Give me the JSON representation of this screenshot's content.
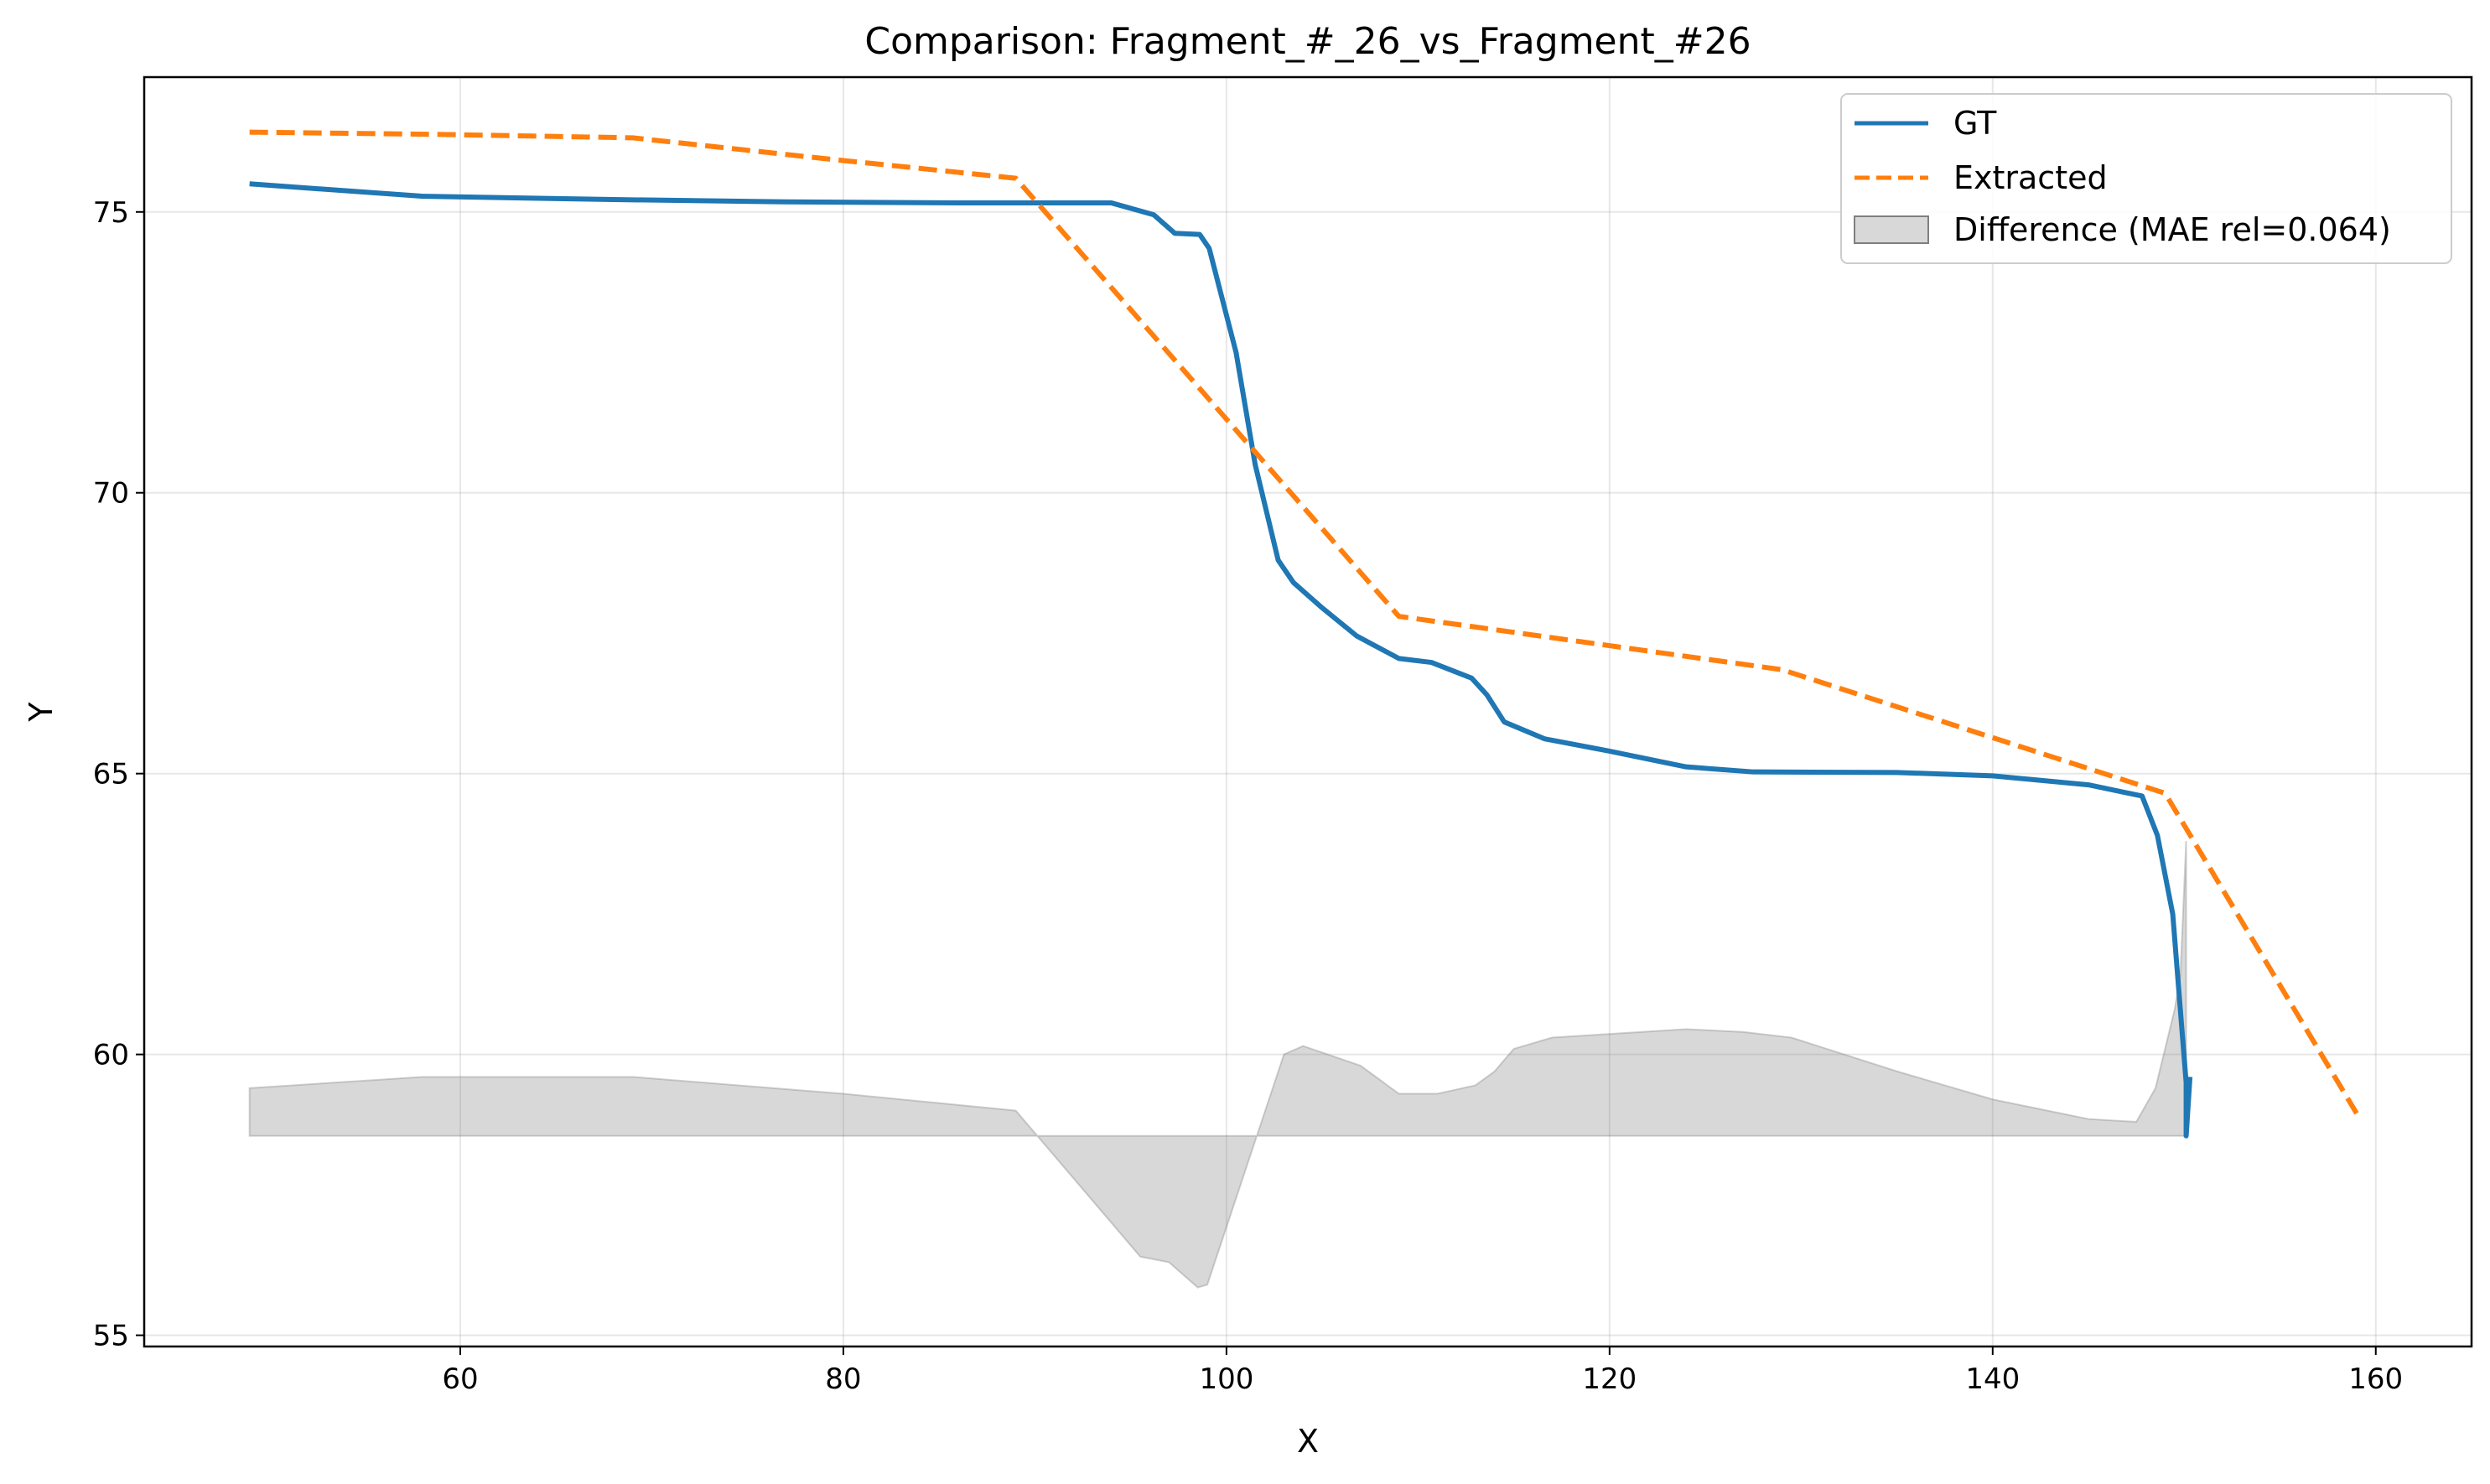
{
  "chart_data": {
    "type": "line",
    "title": "Comparison: Fragment_#_26_vs_Fragment_#26",
    "xlabel": "X",
    "ylabel": "Y",
    "xlim": [
      43.5,
      165
    ],
    "ylim": [
      54.8,
      77.4
    ],
    "xticks": [
      60,
      80,
      100,
      120,
      140,
      160
    ],
    "yticks": [
      55,
      60,
      65,
      70,
      75
    ],
    "grid": true,
    "legend_position": "top-right",
    "series": [
      {
        "name": "GT",
        "style": "solid",
        "color": "#1f77b4",
        "x": [
          49,
          58,
          68,
          77,
          86,
          94,
          96.2,
          97.3,
          98.6,
          99.1,
          100.5,
          101.5,
          102.7,
          103.5,
          105,
          106.8,
          109,
          110.7,
          112.8,
          113.6,
          114.5,
          116.6,
          120,
          124,
          127.5,
          135,
          140,
          145,
          147.8,
          148.6,
          149.4,
          150.1,
          150.1,
          150.3
        ],
        "y": [
          75.5,
          75.28,
          75.22,
          75.18,
          75.16,
          75.16,
          74.95,
          74.62,
          74.6,
          74.35,
          72.5,
          70.5,
          68.8,
          68.4,
          67.95,
          67.45,
          67.05,
          66.98,
          66.7,
          66.4,
          65.92,
          65.62,
          65.4,
          65.12,
          65.03,
          65.02,
          64.96,
          64.8,
          64.6,
          63.9,
          62.5,
          59.5,
          58.55,
          59.6
        ]
      },
      {
        "name": "Extracted",
        "style": "dashed",
        "color": "#ff7f0e",
        "x": [
          49,
          59,
          69,
          79,
          89,
          99,
          109,
          129,
          149,
          159
        ],
        "y": [
          76.42,
          76.38,
          76.32,
          75.95,
          75.6,
          71.7,
          67.8,
          66.85,
          64.65,
          58.95
        ]
      },
      {
        "name": "Difference (MAE rel=0.064)",
        "style": "fill",
        "color": "#7f7f7f",
        "baseline": 58.55,
        "x": [
          49,
          58,
          69,
          80,
          89,
          95.5,
          97,
          98.5,
          99,
          103,
          104,
          107,
          109,
          111,
          113,
          114,
          115,
          117,
          124,
          127,
          129.5,
          135,
          140,
          145,
          147.5,
          148.5,
          149.5,
          149.8,
          150.1,
          150.1
        ],
        "y": [
          59.4,
          59.6,
          59.6,
          59.3,
          59.0,
          56.4,
          56.3,
          55.85,
          55.9,
          60.0,
          60.15,
          59.8,
          59.3,
          59.3,
          59.45,
          59.7,
          60.1,
          60.3,
          60.45,
          60.4,
          60.3,
          59.7,
          59.2,
          58.85,
          58.8,
          59.4,
          60.8,
          61.4,
          63.8,
          58.55
        ]
      }
    ]
  }
}
